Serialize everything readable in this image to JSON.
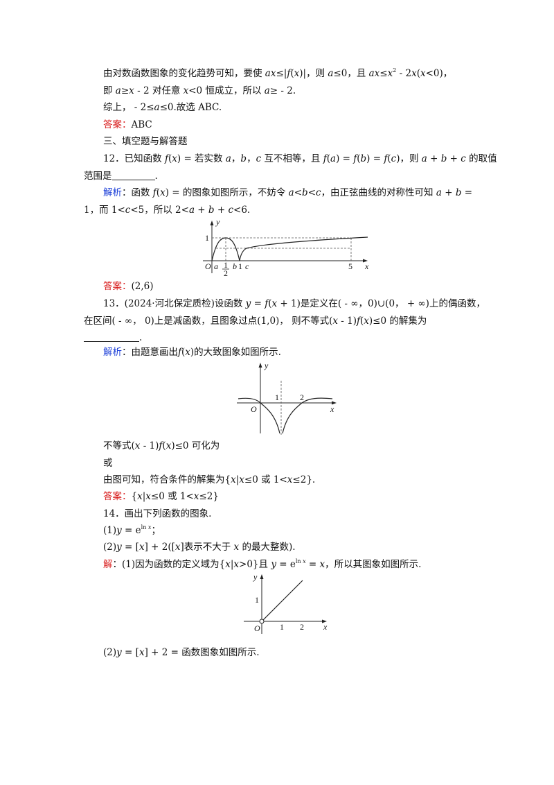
{
  "lines": {
    "l1": {
      "a": "由对数函数图象的变化趋势可知，要使 ",
      "b": "ax",
      "c": "≤|",
      "d": "f",
      "e": "(",
      "f": "x",
      "g": ")|，则 ",
      "h": "a",
      "i": "≤0，且 ",
      "j": "ax",
      "k": "≤",
      "l": "x",
      "m": "2",
      "n": " - 2",
      "o": "x",
      "p": "(",
      "q": "x",
      "r": "<0)，"
    },
    "l2": {
      "a": "即 ",
      "b": "a",
      "c": "≥",
      "d": "x",
      "e": " - 2 对任意 ",
      "f": "x",
      "g": "<0 恒成立，所以 ",
      "h": "a",
      "i": "≥ - 2."
    },
    "l3": {
      "a": "综上， - 2≤",
      "b": "a",
      "c": "≤0.故选 ABC."
    },
    "ans11": {
      "label": "答案：",
      "value": "ABC"
    },
    "sec3": "三、填空题与解答题",
    "q12a": {
      "a": "12．已知函数 ",
      "b": "f",
      "c": "(",
      "d": "x",
      "e": ") = 若实数 ",
      "f": "a",
      "g": "，",
      "h": "b",
      "i": "，",
      "j": "c",
      "k": " 互不相等，且 ",
      "l": "f",
      "m": "(",
      "n": "a",
      "o": ") = ",
      "p": "f",
      "q": "(",
      "r": "b",
      "s": ") = ",
      "t": "f",
      "u": "(",
      "v": "c",
      "w": ")，则 ",
      "x": "a",
      "y": " + ",
      "z": "b",
      "aa": " + ",
      "bb": "c",
      "cc": " 的取值"
    },
    "q12b": {
      "a": "范围是",
      "b": "."
    },
    "sol12a": {
      "label": "解析",
      "a": "：函数 ",
      "b": "f",
      "c": "(",
      "d": "x",
      "e": ") = 的图象如图所示，不妨令 ",
      "f": "a",
      "g": "<",
      "h": "b",
      "i": "<",
      "j": "c",
      "k": "，由正弦曲线的对称性可知 ",
      "l": "a",
      "m": " + ",
      "n": "b",
      "o": " ="
    },
    "sol12b": {
      "a": "1，而 1<",
      "b": "c",
      "c": "<5，所以 2<",
      "d": "a",
      "e": " + ",
      "f": "b",
      "g": " + ",
      "h": "c",
      "i": "<6."
    },
    "fig1": {
      "y": "y",
      "one": "1",
      "O": "O",
      "a": "a",
      "half_num": "1",
      "half_den": "2",
      "b": "b",
      "one_x": "1",
      "c": "c",
      "five": "5",
      "x": "x"
    },
    "ans12": {
      "label": "答案：",
      "value": "(2,6)"
    },
    "q13a": {
      "a": "13．(2024·河北保定质检)设函数 ",
      "b": "y",
      "c": " = ",
      "d": "f",
      "e": "(",
      "f": "x",
      "g": " + 1)是定义在( - ∞，0)∪(0， + ∞)上的偶函数，"
    },
    "q13b": {
      "a": "在区间( - ∞， 0)上是减函数，且图象过点(1,0)， 则不等式(",
      "b": "x",
      "c": " - 1)",
      "d": "f",
      "e": "(",
      "f": "x",
      "g": ")≤0 的解集为"
    },
    "q13c": {
      "a": "."
    },
    "sol13": {
      "label": "解析",
      "a": "：由题意画出",
      "b": "f",
      "c": "(",
      "d": "x",
      "e": ")的大致图象如图所示."
    },
    "fig2": {
      "y": "y",
      "one": "1",
      "two": "2",
      "O": "O",
      "x": "x"
    },
    "t13a": {
      "a": "不等式(",
      "b": "x",
      "c": " - 1)",
      "d": "f",
      "e": "(",
      "f": "x",
      "g": ")≤0 可化为"
    },
    "t13b": "或",
    "t13c": {
      "a": "由图可知，符合条件的解集为{",
      "b": "x",
      "c": "|",
      "d": "x",
      "e": "≤0 或 1<",
      "f": "x",
      "g": "≤2}."
    },
    "ans13": {
      "label": "答案：",
      "a": "{",
      "b": "x",
      "c": "|",
      "d": "x",
      "e": "≤0 或 1<",
      "f": "x",
      "g": "≤2}"
    },
    "q14": "14．画出下列函数的图象.",
    "q14_1": {
      "a": "(1)",
      "b": "y",
      "c": " = e",
      "d": "ln ",
      "e": "x",
      "f": "；"
    },
    "q14_2": {
      "a": "(2)",
      "b": "y",
      "c": " = [",
      "d": "x",
      "e": "] + 2([",
      "f": "x",
      "g": "]表示不大于 ",
      "h": "x",
      "i": " 的最大整数)."
    },
    "sol14_1": {
      "label": "解",
      "a": "：(1)因为函数的定义域为{",
      "b": "x",
      "c": "|",
      "d": "x",
      "e": ">0}且 ",
      "f": "y",
      "g": " = e",
      "h": "ln ",
      "i": "x",
      "j": " = ",
      "k": "x",
      "l": "，所以其图象如图所示."
    },
    "fig3": {
      "y": "y",
      "one": "1",
      "O": "O",
      "x1": "1",
      "x2": "2",
      "x": "x"
    },
    "sol14_2": {
      "a": "(2)",
      "b": "y",
      "c": " = [",
      "d": "x",
      "e": "] + 2 = 函数图象如图所示."
    }
  },
  "colors": {
    "answer": "#d81c1c",
    "solution": "#1c3fd8",
    "text": "#111111"
  }
}
